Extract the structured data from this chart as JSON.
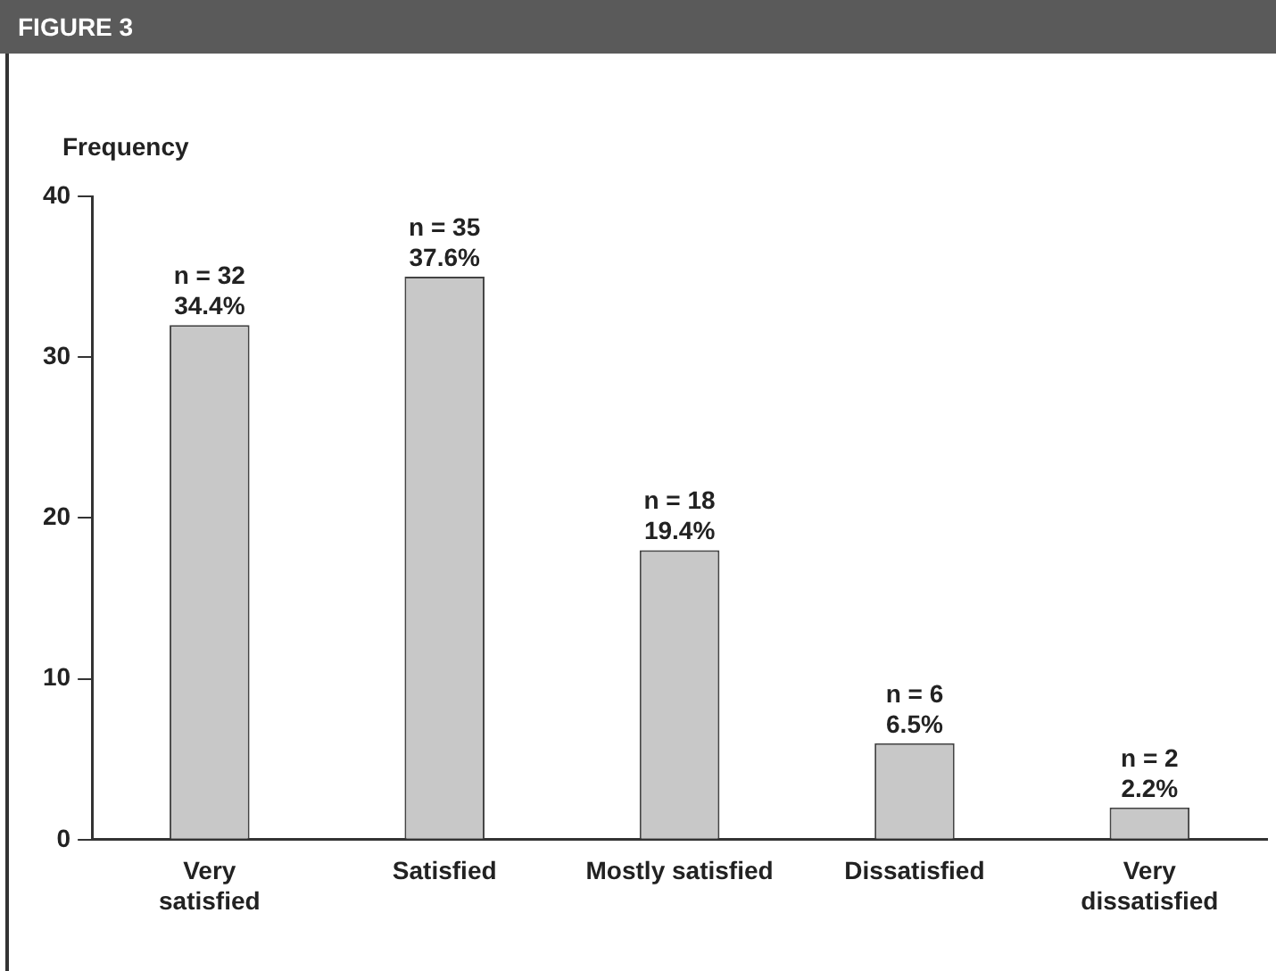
{
  "chart_data": {
    "type": "bar",
    "title": "FIGURE 3",
    "ylabel": "Frequency",
    "categories": [
      "Very\nsatisfied",
      "Satisfied",
      "Mostly satisfied",
      "Dissatisfied",
      "Very\ndissatisfied"
    ],
    "values": [
      32,
      35,
      18,
      6,
      2
    ],
    "value_labels": [
      "n = 32\n34.4%",
      "n = 35\n37.6%",
      "n = 18\n19.4%",
      "n = 6\n6.5%",
      "n = 2\n2.2%"
    ],
    "color": "#c8c8c8",
    "ylim": [
      0,
      40
    ],
    "yticks": [
      0,
      10,
      20,
      30,
      40
    ],
    "grid": false,
    "legend": false
  }
}
